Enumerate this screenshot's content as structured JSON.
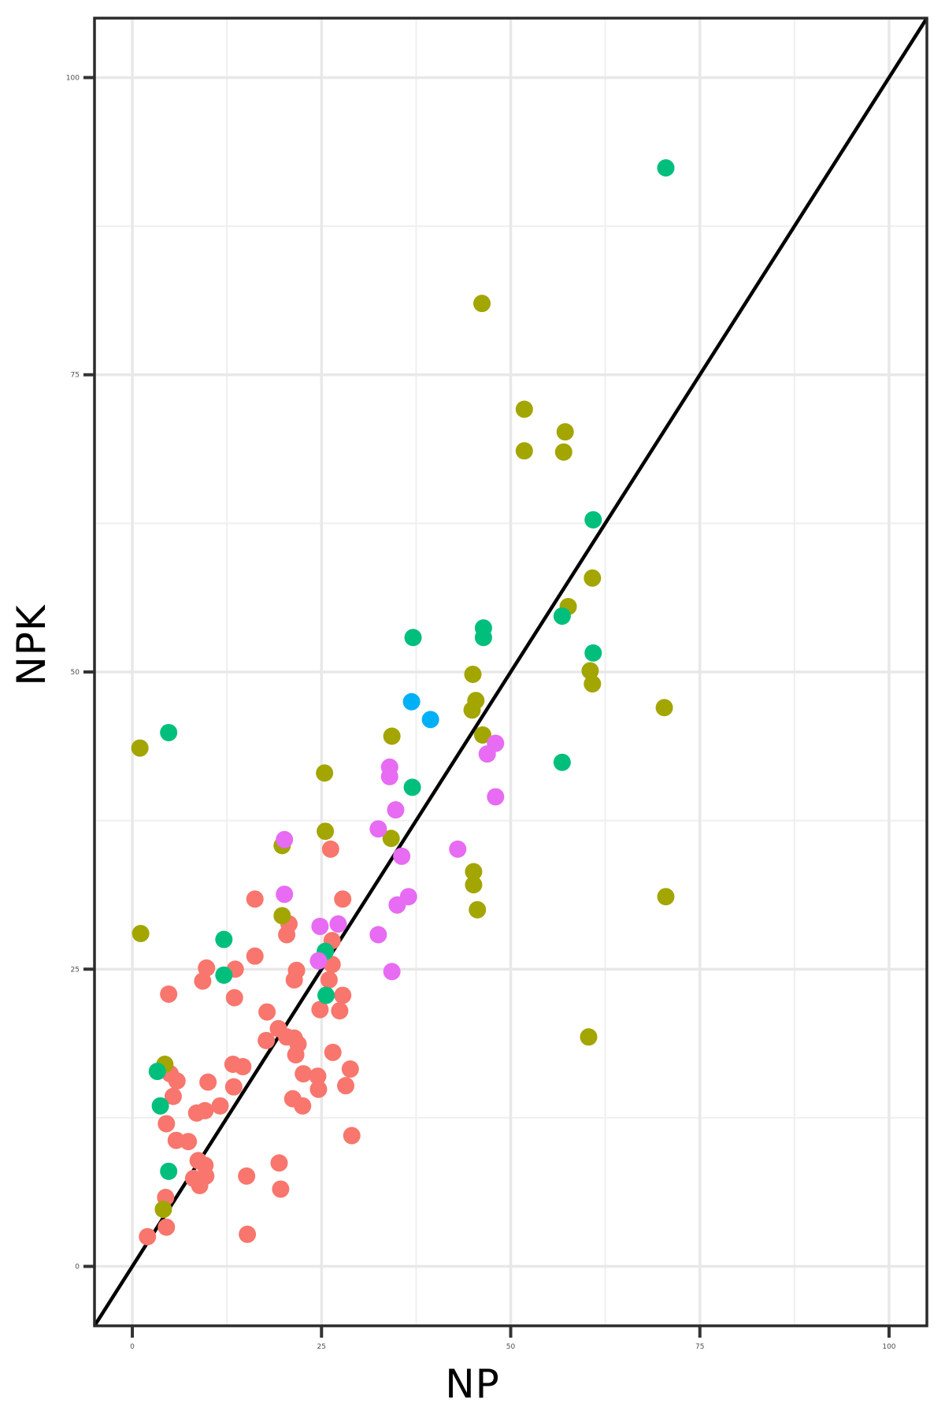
{
  "page": {
    "background": "#FFFFFF"
  },
  "chart_data": {
    "type": "scatter",
    "title": "",
    "xlabel": "NP",
    "ylabel": "NPK",
    "xlim": [
      -5,
      105
    ],
    "ylim": [
      -5,
      105
    ],
    "x_ticks": [
      0,
      25,
      50,
      75,
      100
    ],
    "y_ticks": [
      0,
      25,
      50,
      75,
      100
    ],
    "x_tick_labels": [
      "0",
      "25",
      "50",
      "75",
      "100"
    ],
    "y_tick_labels": [
      "0",
      "25",
      "50",
      "75",
      "100"
    ],
    "grid": {
      "major": true,
      "minor": true,
      "major_color": "#E8E8E8",
      "minor_color": "#EFEFEF"
    },
    "panel": {
      "background": "#FFFFFF",
      "border_color": "#2B2B2B"
    },
    "axis": {
      "tick_color": "#333333",
      "tick_label_color": "#4D4D4D"
    },
    "abline": {
      "type": "identity y=x",
      "x1": -5,
      "y1": -5,
      "x2": 105,
      "y2": 105,
      "color": "#000000",
      "width": 4.5
    },
    "point_radius_px": 11,
    "legend": "none",
    "series": [
      {
        "name": "salmon",
        "color": "#F8766D",
        "points": [
          [
            26.2,
            35.1
          ],
          [
            27.8,
            30.9
          ],
          [
            16.2,
            30.9
          ],
          [
            20.7,
            28.8
          ],
          [
            20.4,
            27.9
          ],
          [
            26.4,
            27.4
          ],
          [
            16.2,
            26.1
          ],
          [
            26.4,
            25.4
          ],
          [
            9.8,
            25.1
          ],
          [
            13.6,
            25.0
          ],
          [
            21.7,
            24.9
          ],
          [
            9.3,
            24.0
          ],
          [
            21.4,
            24.1
          ],
          [
            26.0,
            24.1
          ],
          [
            4.8,
            22.9
          ],
          [
            13.5,
            22.6
          ],
          [
            27.8,
            22.8
          ],
          [
            24.8,
            21.6
          ],
          [
            27.4,
            21.5
          ],
          [
            17.8,
            21.4
          ],
          [
            19.3,
            20.0
          ],
          [
            20.4,
            19.3
          ],
          [
            21.4,
            19.2
          ],
          [
            17.7,
            19.0
          ],
          [
            21.9,
            18.7
          ],
          [
            21.6,
            17.8
          ],
          [
            26.5,
            18.0
          ],
          [
            13.3,
            17.0
          ],
          [
            14.6,
            16.8
          ],
          [
            28.8,
            16.6
          ],
          [
            5.0,
            16.2
          ],
          [
            22.6,
            16.2
          ],
          [
            24.5,
            16.0
          ],
          [
            5.9,
            15.6
          ],
          [
            10.0,
            15.5
          ],
          [
            13.4,
            15.1
          ],
          [
            28.2,
            15.2
          ],
          [
            24.6,
            14.9
          ],
          [
            5.4,
            14.3
          ],
          [
            21.2,
            14.1
          ],
          [
            11.6,
            13.5
          ],
          [
            22.5,
            13.5
          ],
          [
            9.6,
            13.1
          ],
          [
            8.5,
            12.9
          ],
          [
            4.5,
            12.0
          ],
          [
            29.0,
            11.0
          ],
          [
            5.8,
            10.6
          ],
          [
            7.4,
            10.5
          ],
          [
            8.7,
            8.9
          ],
          [
            19.4,
            8.7
          ],
          [
            9.6,
            8.5
          ],
          [
            9.7,
            7.6
          ],
          [
            8.1,
            7.4
          ],
          [
            15.1,
            7.6
          ],
          [
            8.9,
            6.8
          ],
          [
            19.6,
            6.5
          ],
          [
            4.4,
            5.8
          ],
          [
            4.5,
            3.3
          ],
          [
            15.2,
            2.7
          ],
          [
            2.0,
            2.5
          ]
        ]
      },
      {
        "name": "olive",
        "color": "#A3A500",
        "points": [
          [
            46.2,
            81.0
          ],
          [
            51.8,
            72.1
          ],
          [
            57.2,
            70.2
          ],
          [
            51.8,
            68.6
          ],
          [
            57.0,
            68.5
          ],
          [
            60.8,
            57.9
          ],
          [
            57.6,
            55.5
          ],
          [
            60.5,
            50.1
          ],
          [
            60.8,
            49.0
          ],
          [
            70.3,
            47.0
          ],
          [
            45.0,
            49.8
          ],
          [
            45.4,
            47.6
          ],
          [
            44.9,
            46.8
          ],
          [
            46.3,
            44.7
          ],
          [
            34.3,
            44.6
          ],
          [
            1.0,
            43.6
          ],
          [
            25.4,
            41.5
          ],
          [
            25.5,
            36.6
          ],
          [
            34.2,
            36.0
          ],
          [
            19.8,
            35.4
          ],
          [
            45.1,
            33.2
          ],
          [
            45.1,
            32.1
          ],
          [
            45.6,
            30.0
          ],
          [
            70.5,
            31.1
          ],
          [
            19.8,
            29.5
          ],
          [
            1.1,
            28.0
          ],
          [
            60.3,
            19.3
          ],
          [
            4.3,
            17.0
          ],
          [
            4.1,
            4.8
          ]
        ]
      },
      {
        "name": "green",
        "color": "#00BF7D",
        "points": [
          [
            70.5,
            92.4
          ],
          [
            60.9,
            62.8
          ],
          [
            60.9,
            51.6
          ],
          [
            56.8,
            54.7
          ],
          [
            56.8,
            42.4
          ],
          [
            37.1,
            52.9
          ],
          [
            46.4,
            53.7
          ],
          [
            46.4,
            52.9
          ],
          [
            37.0,
            40.3
          ],
          [
            4.8,
            44.9
          ],
          [
            12.1,
            27.5
          ],
          [
            25.5,
            26.5
          ],
          [
            12.1,
            24.5
          ],
          [
            25.6,
            22.8
          ],
          [
            3.3,
            16.4
          ],
          [
            3.7,
            13.5
          ],
          [
            4.8,
            8.0
          ]
        ]
      },
      {
        "name": "blue",
        "color": "#00B0F6",
        "points": [
          [
            36.9,
            47.5
          ],
          [
            39.4,
            46.0
          ]
        ]
      },
      {
        "name": "magenta",
        "color": "#E76BF3",
        "points": [
          [
            48.0,
            44.0
          ],
          [
            46.9,
            43.1
          ],
          [
            34.0,
            42.0
          ],
          [
            34.0,
            41.2
          ],
          [
            48.0,
            39.5
          ],
          [
            34.8,
            38.4
          ],
          [
            32.5,
            36.8
          ],
          [
            20.1,
            35.9
          ],
          [
            43.0,
            35.1
          ],
          [
            35.6,
            34.5
          ],
          [
            20.1,
            31.3
          ],
          [
            36.5,
            31.1
          ],
          [
            35.0,
            30.4
          ],
          [
            27.2,
            28.8
          ],
          [
            24.8,
            28.6
          ],
          [
            32.5,
            27.9
          ],
          [
            24.6,
            25.7
          ],
          [
            34.3,
            24.8
          ]
        ]
      }
    ]
  }
}
